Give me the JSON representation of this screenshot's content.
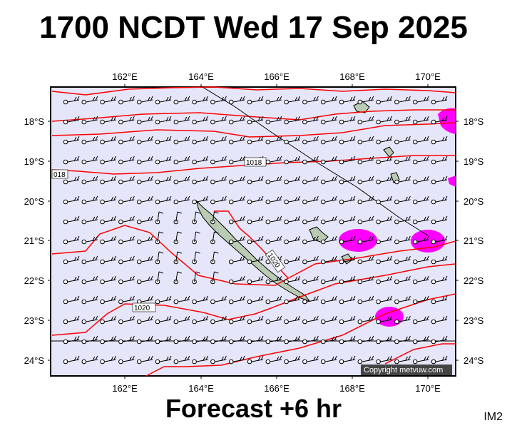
{
  "title": "1700 NCDT Wed 17 Sep 2025",
  "footer": "Forecast +6 hr",
  "product_code": "IM2",
  "copyright": "Copyright metvuw.com",
  "colors": {
    "ocean": "#e6e6fa",
    "isobar": "#ff0000",
    "precip": "#ff00ff",
    "land": "#b9cbb3"
  },
  "axes": {
    "lon_ticks": [
      "162°E",
      "164°E",
      "166°E",
      "168°E",
      "170°E"
    ],
    "lat_ticks": [
      "18°S",
      "19°S",
      "20°S",
      "21°S",
      "22°S",
      "23°S",
      "24°S"
    ]
  },
  "isobar_labels": [
    "1018",
    "018",
    "1020",
    "1020"
  ]
}
